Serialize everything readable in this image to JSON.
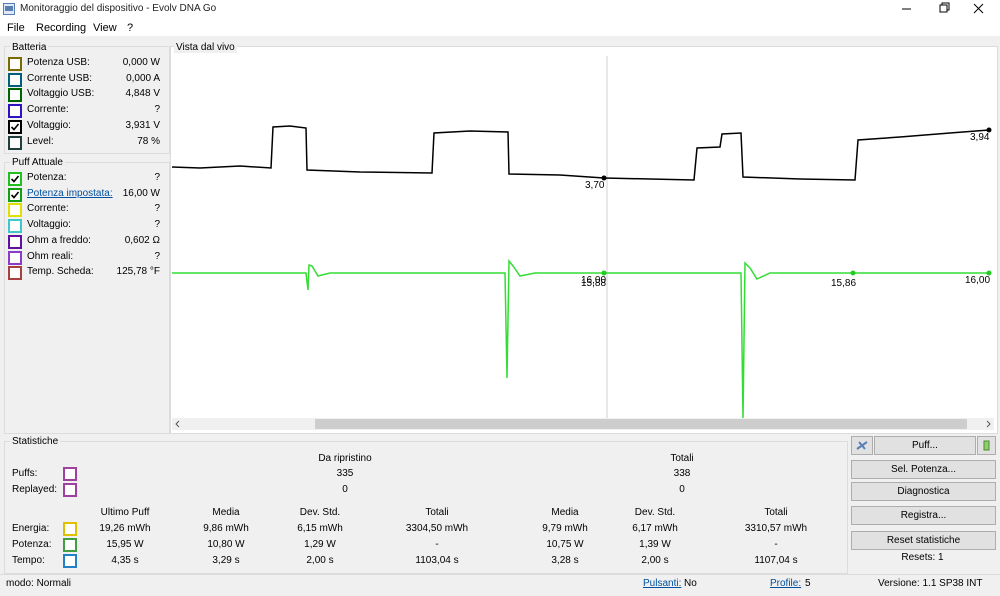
{
  "window": {
    "title": "Monitoraggio del dispositivo - Evolv DNA Go"
  },
  "menu": [
    "File",
    "Recording",
    "View",
    "?"
  ],
  "battery": {
    "title": "Batteria",
    "rows": [
      {
        "label": "Potenza USB:",
        "value": "0,000 W",
        "color": "#7a6a00",
        "checked": false
      },
      {
        "label": "Corrente USB:",
        "value": "0,000 A",
        "color": "#005f7a",
        "checked": false
      },
      {
        "label": "Voltaggio USB:",
        "value": "4,848 V",
        "color": "#006400",
        "checked": false
      },
      {
        "label": "Corrente:",
        "value": "?",
        "color": "#3010c0",
        "checked": false
      },
      {
        "label": "Voltaggio:",
        "value": "3,931 V",
        "color": "#000000",
        "checked": true
      },
      {
        "label": "Level:",
        "value": "78 %",
        "color": "#1f3f3f",
        "checked": false
      }
    ]
  },
  "puff": {
    "title": "Puff Attuale",
    "rows": [
      {
        "label": "Potenza:",
        "value": "?",
        "color": "#20c020",
        "checked": true
      },
      {
        "label": "Potenza impostata:",
        "value": "16,00 W",
        "color": "#10a010",
        "checked": true,
        "link": true
      },
      {
        "label": "Corrente:",
        "value": "?",
        "color": "#e0e000",
        "checked": false
      },
      {
        "label": "Voltaggio:",
        "value": "?",
        "color": "#40c8c8",
        "checked": false
      },
      {
        "label": "Ohm a freddo:",
        "value": "0,602 Ω",
        "color": "#6010a0",
        "checked": false
      },
      {
        "label": "Ohm reali:",
        "value": "?",
        "color": "#8a3cc8",
        "checked": false
      },
      {
        "label": "Temp. Scheda:",
        "value": "125,78 °F",
        "color": "#a84040",
        "checked": false
      }
    ]
  },
  "live_view": {
    "title": "Vista dal vivo",
    "labels": [
      "3,70",
      "3,94",
      "16,00",
      "15,88",
      "15,86",
      "16,00"
    ]
  },
  "statistics": {
    "title": "Statistiche",
    "group_headers": [
      "Da ripristino",
      "Totali"
    ],
    "counts": [
      {
        "label": "Puffs:",
        "color": "#a040a0",
        "values": [
          "335",
          "338"
        ]
      },
      {
        "label": "Replayed:",
        "color": "#a040a0",
        "values": [
          "0",
          "0"
        ]
      }
    ],
    "columns": [
      "Ultimo Puff",
      "Media",
      "Dev. Std.",
      "Totali",
      "Media",
      "Dev. Std.",
      "Totali"
    ],
    "rows": [
      {
        "label": "Energia:",
        "color": "#e0c000",
        "values": [
          "19,26 mWh",
          "9,86 mWh",
          "6,15 mWh",
          "3304,50 mWh",
          "9,79 mWh",
          "6,17 mWh",
          "3310,57 mWh"
        ]
      },
      {
        "label": "Potenza:",
        "color": "#40a040",
        "values": [
          "15,95 W",
          "10,80 W",
          "1,29 W",
          "-",
          "10,75 W",
          "1,39 W",
          "-"
        ]
      },
      {
        "label": "Tempo:",
        "color": "#2080c8",
        "values": [
          "4,35 s",
          "3,29 s",
          "2,00 s",
          "1103,04 s",
          "3,28 s",
          "2,00 s",
          "1107,04 s"
        ]
      }
    ]
  },
  "buttons": {
    "puff": "Puff...",
    "actions": [
      "Sel. Potenza...",
      "Diagnostica",
      "Registra...",
      "Reset statistiche"
    ],
    "resets": "Resets: 1"
  },
  "status": {
    "mode": "modo: Normali",
    "buttons_label": "Pulsanti:",
    "buttons_value": "No",
    "profile_label": "Profile:",
    "profile_value": "5",
    "version": "Versione: 1.1 SP38 INT"
  }
}
